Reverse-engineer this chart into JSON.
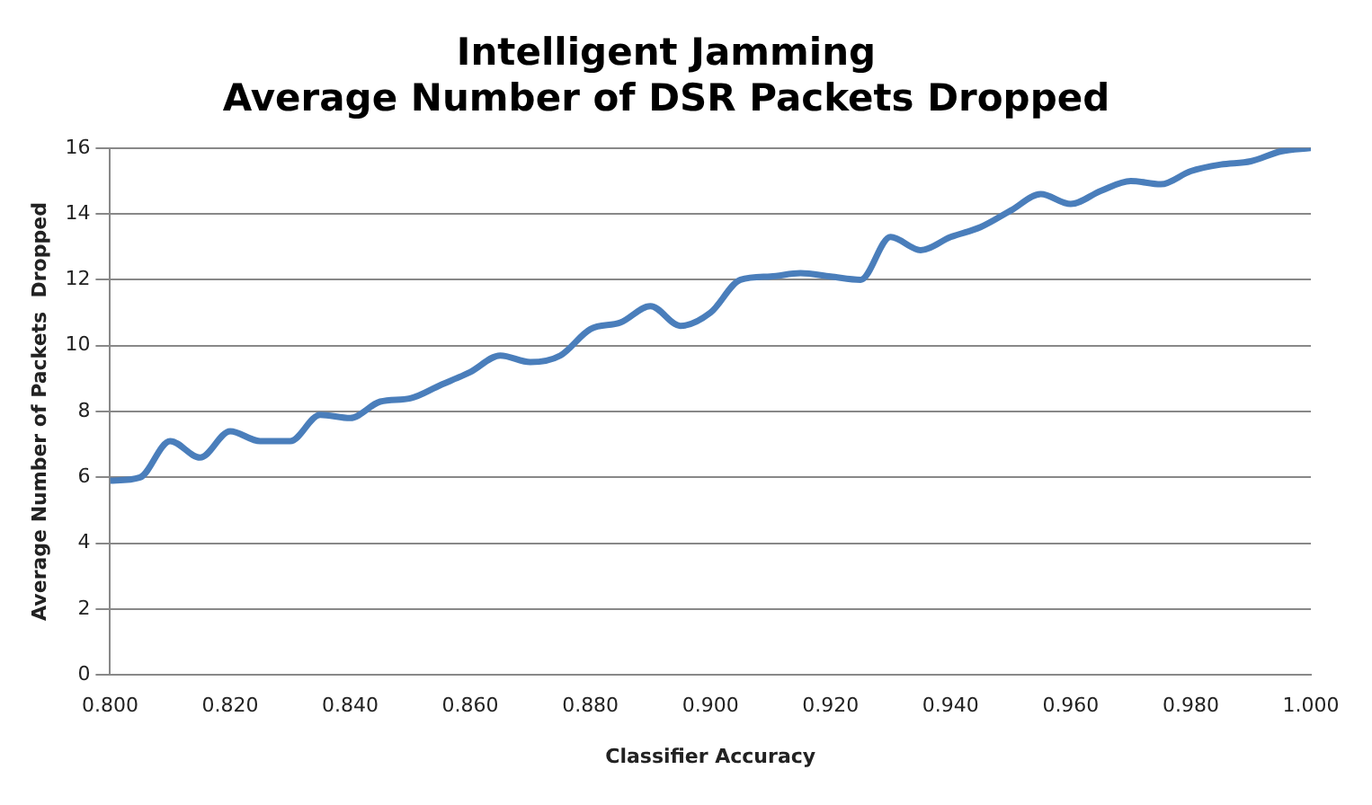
{
  "chart_data": {
    "type": "line",
    "title": [
      "Intelligent Jamming",
      "Average Number of DSR Packets Dropped"
    ],
    "xlabel": "Classifier Accuracy",
    "ylabel": "Average Number of Packets  Dropped",
    "x": [
      0.8,
      0.805,
      0.81,
      0.815,
      0.82,
      0.825,
      0.83,
      0.835,
      0.84,
      0.845,
      0.85,
      0.855,
      0.86,
      0.865,
      0.87,
      0.875,
      0.88,
      0.885,
      0.89,
      0.895,
      0.9,
      0.905,
      0.91,
      0.915,
      0.92,
      0.925,
      0.93,
      0.935,
      0.94,
      0.945,
      0.95,
      0.955,
      0.96,
      0.965,
      0.97,
      0.975,
      0.98,
      0.985,
      0.99,
      0.995,
      1.0
    ],
    "series": [
      {
        "color": "#4a7ebb",
        "values": [
          5.9,
          6.0,
          7.1,
          6.6,
          7.4,
          7.1,
          7.1,
          7.9,
          7.8,
          8.3,
          8.4,
          8.8,
          9.2,
          9.7,
          9.5,
          9.7,
          10.5,
          10.7,
          11.2,
          10.6,
          11.0,
          12.0,
          12.1,
          12.2,
          12.1,
          12.0,
          13.3,
          12.9,
          13.3,
          13.6,
          14.1,
          14.6,
          14.3,
          14.7,
          15.0,
          14.9,
          15.3,
          15.5,
          15.6,
          15.9,
          16.0
        ]
      }
    ],
    "xlim": [
      0.8,
      1.0
    ],
    "xticks": [
      {
        "value": 0.8,
        "label": "0.800"
      },
      {
        "value": 0.82,
        "label": "0.820"
      },
      {
        "value": 0.84,
        "label": "0.840"
      },
      {
        "value": 0.86,
        "label": "0.860"
      },
      {
        "value": 0.88,
        "label": "0.880"
      },
      {
        "value": 0.9,
        "label": "0.900"
      },
      {
        "value": 0.92,
        "label": "0.920"
      },
      {
        "value": 0.94,
        "label": "0.940"
      },
      {
        "value": 0.96,
        "label": "0.960"
      },
      {
        "value": 0.98,
        "label": "0.980"
      },
      {
        "value": 1.0,
        "label": "1.000"
      }
    ],
    "ylim": [
      0,
      16
    ],
    "yticks": [
      0,
      2,
      4,
      6,
      8,
      10,
      12,
      14,
      16
    ],
    "grid": "y",
    "legend": false,
    "marker": "none",
    "line_style": "solid"
  }
}
